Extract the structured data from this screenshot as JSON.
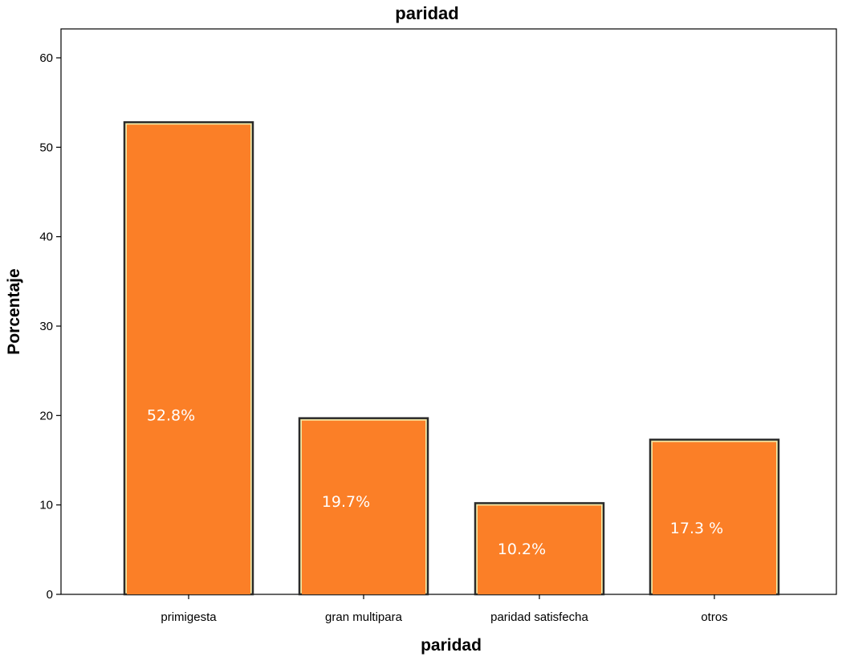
{
  "chart_data": {
    "type": "bar",
    "title": "paridad",
    "xlabel": "paridad",
    "ylabel": "Porcentaje",
    "categories": [
      "primigesta",
      "gran multipara",
      "paridad satisfecha",
      "otros"
    ],
    "values": [
      52.8,
      19.7,
      10.2,
      17.3
    ],
    "data_labels": [
      "52.8%",
      "19.7%",
      "10.2%",
      "17.3 %"
    ],
    "yticks": [
      "0",
      "10",
      "20",
      "30",
      "40",
      "50",
      "60"
    ],
    "ylim": [
      0,
      63
    ],
    "grid": false,
    "legend": "none",
    "colors": {
      "bar_fill": "#fb7f27",
      "bar_inner_border": "#f4e9a5",
      "bar_outer_border": "#2a2a2a",
      "frame": "#000000",
      "data_label": "#ffffff"
    }
  }
}
